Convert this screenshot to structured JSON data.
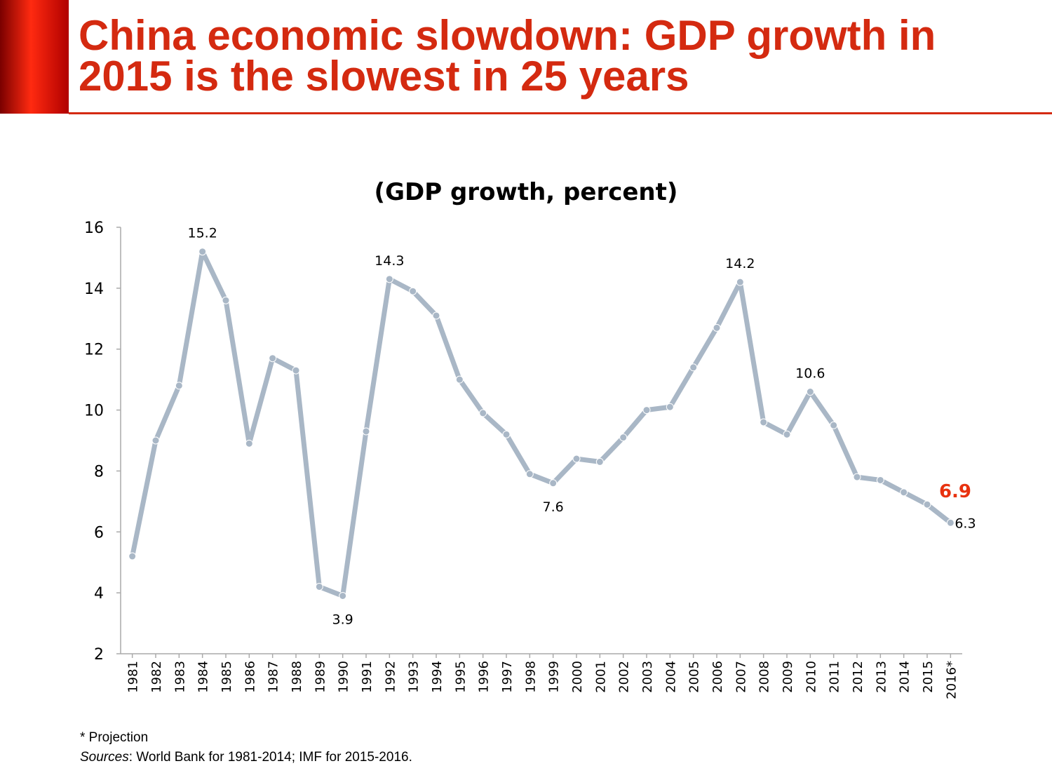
{
  "header": {
    "title": "China economic slowdown: GDP growth in 2015 is the slowest in 25 years"
  },
  "chart_data": {
    "type": "line",
    "title": "(GDP growth, percent)",
    "categories": [
      "1981",
      "1982",
      "1983",
      "1984",
      "1985",
      "1986",
      "1987",
      "1988",
      "1989",
      "1990",
      "1991",
      "1992",
      "1993",
      "1994",
      "1995",
      "1996",
      "1997",
      "1998",
      "1999",
      "2000",
      "2001",
      "2002",
      "2003",
      "2004",
      "2005",
      "2006",
      "2007",
      "2008",
      "2009",
      "2010",
      "2011",
      "2012",
      "2013",
      "2014",
      "2015",
      "2016*"
    ],
    "values": [
      5.2,
      9.0,
      10.8,
      15.2,
      13.6,
      8.9,
      11.7,
      11.3,
      4.2,
      3.9,
      9.3,
      14.3,
      13.9,
      13.1,
      11.0,
      9.9,
      9.2,
      7.9,
      7.6,
      8.4,
      8.3,
      9.1,
      10.0,
      10.1,
      11.4,
      12.7,
      14.2,
      9.6,
      9.2,
      10.6,
      9.5,
      7.8,
      7.7,
      7.3,
      6.9,
      6.3
    ],
    "value_labels": [
      null,
      null,
      null,
      "15.2",
      null,
      null,
      null,
      null,
      null,
      "3.9",
      null,
      "14.3",
      null,
      null,
      null,
      null,
      null,
      null,
      "7.6",
      null,
      null,
      null,
      null,
      null,
      null,
      null,
      "14.2",
      null,
      null,
      "10.6",
      null,
      null,
      null,
      null,
      "6.9",
      "6.3"
    ],
    "value_label_colors": [
      null,
      null,
      null,
      "#000000",
      null,
      null,
      null,
      null,
      null,
      "#000000",
      null,
      "#000000",
      null,
      null,
      null,
      null,
      null,
      null,
      "#000000",
      null,
      null,
      null,
      null,
      null,
      null,
      null,
      "#000000",
      null,
      null,
      "#000000",
      null,
      null,
      null,
      null,
      "#e8320f",
      "#000000"
    ],
    "color": "#a9b7c6",
    "ylim": [
      2,
      16
    ],
    "yticks": [
      2,
      4,
      6,
      8,
      10,
      12,
      14,
      16
    ],
    "grid": false
  },
  "notes": {
    "projection": "* Projection",
    "source_label": "Sources",
    "source_text": ": World Bank for 1981-2014; IMF for 2015-2016."
  }
}
